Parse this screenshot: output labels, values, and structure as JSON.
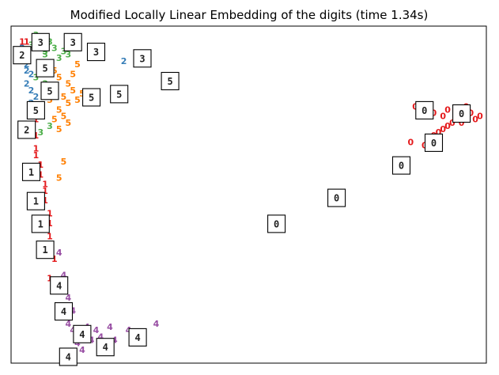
{
  "chart_data": {
    "type": "scatter",
    "title": "Modified Locally Linear Embedding of the digits (time 1.34s)",
    "xlabel": "",
    "ylabel": "",
    "xlim": [
      0,
      1
    ],
    "ylim": [
      0,
      1
    ],
    "grid": false,
    "axis_ticks": false,
    "marker": "digit label text",
    "digit_colors": {
      "0": "#e41a1c",
      "1": "#e41a1c",
      "2": "#377eb8",
      "3": "#4daf4a",
      "4": "#984ea3",
      "5": "#ff7f00"
    },
    "series": [
      {
        "name": "0",
        "points": [
          [
            0.86,
            0.77
          ],
          [
            0.9,
            0.75
          ],
          [
            0.92,
            0.74
          ],
          [
            0.93,
            0.76
          ],
          [
            0.95,
            0.74
          ],
          [
            0.97,
            0.73
          ],
          [
            0.98,
            0.75
          ],
          [
            0.99,
            0.73
          ],
          [
            0.94,
            0.72
          ],
          [
            0.92,
            0.7
          ],
          [
            0.91,
            0.69
          ],
          [
            0.89,
            0.67
          ],
          [
            0.93,
            0.71
          ],
          [
            0.96,
            0.72
          ],
          [
            1.0,
            0.74
          ],
          [
            0.85,
            0.66
          ],
          [
            0.9,
            0.68
          ],
          [
            0.95,
            0.76
          ],
          [
            0.97,
            0.77
          ],
          [
            0.88,
            0.65
          ]
        ]
      },
      {
        "name": "1",
        "points": [
          [
            0.01,
            0.97
          ],
          [
            0.02,
            0.97
          ],
          [
            0.03,
            0.69
          ],
          [
            0.04,
            0.68
          ],
          [
            0.04,
            0.64
          ],
          [
            0.04,
            0.62
          ],
          [
            0.05,
            0.59
          ],
          [
            0.05,
            0.56
          ],
          [
            0.06,
            0.51
          ],
          [
            0.06,
            0.48
          ],
          [
            0.07,
            0.44
          ],
          [
            0.07,
            0.41
          ],
          [
            0.07,
            0.37
          ],
          [
            0.07,
            0.33
          ],
          [
            0.07,
            0.24
          ],
          [
            0.08,
            0.3
          ],
          [
            0.06,
            0.53
          ],
          [
            0.05,
            0.46
          ],
          [
            0.03,
            0.71
          ],
          [
            0.04,
            0.73
          ]
        ]
      },
      {
        "name": "2",
        "points": [
          [
            0.01,
            0.95
          ],
          [
            0.01,
            0.92
          ],
          [
            0.02,
            0.91
          ],
          [
            0.02,
            0.9
          ],
          [
            0.03,
            0.82
          ],
          [
            0.04,
            0.8
          ],
          [
            0.03,
            0.87
          ],
          [
            0.02,
            0.84
          ],
          [
            0.23,
            0.91
          ],
          [
            0.03,
            0.78
          ],
          [
            0.05,
            0.76
          ],
          [
            0.02,
            0.88
          ]
        ]
      },
      {
        "name": "3",
        "points": [
          [
            0.04,
            0.99
          ],
          [
            0.05,
            0.98
          ],
          [
            0.07,
            0.97
          ],
          [
            0.08,
            0.95
          ],
          [
            0.06,
            0.94
          ],
          [
            0.1,
            0.94
          ],
          [
            0.09,
            0.92
          ],
          [
            0.11,
            0.93
          ],
          [
            0.12,
            0.95
          ],
          [
            0.03,
            0.96
          ],
          [
            0.05,
            0.9
          ],
          [
            0.04,
            0.86
          ],
          [
            0.06,
            0.84
          ],
          [
            0.07,
            0.71
          ],
          [
            0.05,
            0.69
          ],
          [
            0.06,
            0.93
          ]
        ]
      },
      {
        "name": "4",
        "points": [
          [
            0.09,
            0.32
          ],
          [
            0.1,
            0.25
          ],
          [
            0.11,
            0.18
          ],
          [
            0.12,
            0.14
          ],
          [
            0.11,
            0.1
          ],
          [
            0.12,
            0.08
          ],
          [
            0.14,
            0.06
          ],
          [
            0.16,
            0.05
          ],
          [
            0.13,
            0.04
          ],
          [
            0.15,
            0.09
          ],
          [
            0.17,
            0.08
          ],
          [
            0.18,
            0.06
          ],
          [
            0.2,
            0.09
          ],
          [
            0.24,
            0.08
          ],
          [
            0.21,
            0.05
          ],
          [
            0.3,
            0.1
          ],
          [
            0.1,
            0.12
          ],
          [
            0.14,
            0.02
          ]
        ]
      },
      {
        "name": "5",
        "points": [
          [
            0.06,
            0.89
          ],
          [
            0.08,
            0.88
          ],
          [
            0.09,
            0.86
          ],
          [
            0.11,
            0.84
          ],
          [
            0.12,
            0.82
          ],
          [
            0.1,
            0.8
          ],
          [
            0.11,
            0.78
          ],
          [
            0.13,
            0.79
          ],
          [
            0.09,
            0.76
          ],
          [
            0.1,
            0.74
          ],
          [
            0.11,
            0.72
          ],
          [
            0.08,
            0.73
          ],
          [
            0.07,
            0.79
          ],
          [
            0.12,
            0.87
          ],
          [
            0.14,
            0.81
          ],
          [
            0.17,
            0.79
          ],
          [
            0.09,
            0.7
          ],
          [
            0.1,
            0.6
          ],
          [
            0.09,
            0.55
          ],
          [
            0.13,
            0.9
          ],
          [
            0.06,
            0.82
          ]
        ]
      }
    ]
  }
}
